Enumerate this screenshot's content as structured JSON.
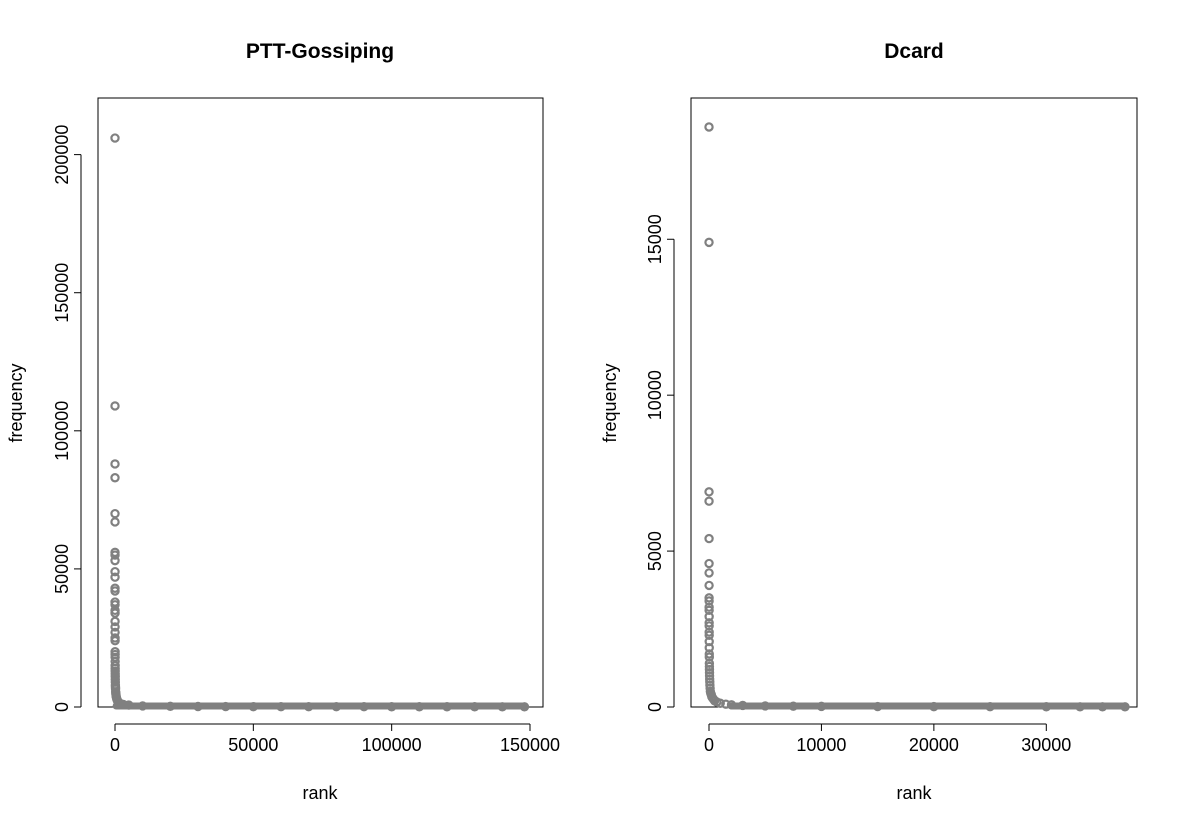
{
  "chart_data": [
    {
      "type": "scatter",
      "title": "PTT-Gossiping",
      "xlabel": "rank",
      "ylabel": "frequency",
      "xlim": [
        0,
        150000
      ],
      "ylim": [
        0,
        210000
      ],
      "x_ticks": [
        0,
        50000,
        100000,
        150000
      ],
      "y_ticks": [
        0,
        50000,
        100000,
        150000,
        200000
      ],
      "x_tick_labels": [
        "0",
        "50000",
        "100000",
        "150000"
      ],
      "y_tick_labels": [
        "0",
        "50000",
        "100000",
        "150000",
        "200000"
      ],
      "point_color": "#808080",
      "grid": false,
      "legend": "none",
      "series": [
        {
          "x": [
            1,
            2,
            3,
            4,
            5,
            6,
            7,
            8,
            9,
            10,
            11,
            12,
            13,
            14,
            15,
            16,
            18,
            20,
            22,
            25,
            28,
            32,
            36,
            40,
            45,
            50,
            55,
            60,
            70,
            80,
            90,
            100,
            120,
            140,
            160,
            180,
            200,
            250,
            300,
            350,
            400,
            500,
            600,
            800,
            1000,
            1200,
            1500,
            2000,
            3000,
            5000,
            10000,
            20000,
            30000,
            40000,
            50000,
            60000,
            70000,
            80000,
            90000,
            100000,
            110000,
            120000,
            130000,
            140000,
            148000
          ],
          "y": [
            206000,
            109000,
            88000,
            83000,
            70000,
            67000,
            56000,
            55000,
            53000,
            49000,
            47000,
            43000,
            42000,
            38000,
            37000,
            35000,
            34000,
            31000,
            29000,
            27000,
            25000,
            24000,
            20000,
            19000,
            18000,
            16500,
            15000,
            14000,
            13000,
            12000,
            11000,
            10000,
            9000,
            8000,
            7500,
            7000,
            6500,
            5500,
            5000,
            4500,
            4000,
            3500,
            3000,
            2500,
            2000,
            1800,
            1500,
            1200,
            900,
            700,
            400,
            250,
            180,
            150,
            130,
            120,
            110,
            105,
            100,
            95,
            90,
            88,
            86,
            84,
            80
          ]
        }
      ]
    },
    {
      "type": "scatter",
      "title": "Dcard",
      "xlabel": "rank",
      "ylabel": "frequency",
      "xlim": [
        0,
        37000
      ],
      "ylim": [
        0,
        18600
      ],
      "x_ticks": [
        0,
        10000,
        20000,
        30000
      ],
      "y_ticks": [
        0,
        5000,
        10000,
        15000
      ],
      "x_tick_labels": [
        "0",
        "10000",
        "20000",
        "30000"
      ],
      "y_tick_labels": [
        "0",
        "5000",
        "10000",
        "15000"
      ],
      "point_color": "#808080",
      "grid": false,
      "legend": "none",
      "series": [
        {
          "x": [
            1,
            2,
            3,
            4,
            5,
            6,
            7,
            8,
            9,
            10,
            11,
            12,
            13,
            14,
            15,
            16,
            18,
            20,
            22,
            25,
            28,
            32,
            36,
            40,
            45,
            50,
            60,
            70,
            80,
            100,
            120,
            150,
            200,
            250,
            300,
            400,
            500,
            700,
            1000,
            1500,
            2000,
            3000,
            5000,
            7500,
            10000,
            15000,
            20000,
            25000,
            30000,
            33000,
            35000,
            37000
          ],
          "y": [
            18600,
            14900,
            6900,
            6600,
            5400,
            4600,
            4300,
            3900,
            3500,
            3400,
            3200,
            3100,
            2900,
            2700,
            2600,
            2400,
            2300,
            2100,
            1900,
            1700,
            1600,
            1400,
            1300,
            1200,
            1100,
            1000,
            900,
            800,
            700,
            600,
            500,
            450,
            400,
            330,
            300,
            250,
            200,
            160,
            120,
            90,
            70,
            50,
            35,
            25,
            20,
            15,
            12,
            10,
            8,
            7,
            6,
            5
          ]
        }
      ]
    }
  ]
}
